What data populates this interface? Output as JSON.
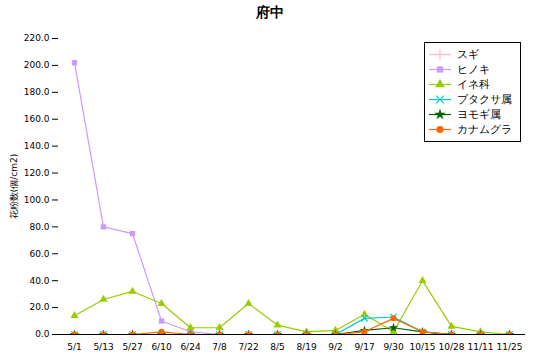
{
  "chart_data": {
    "type": "line",
    "title": "府中",
    "ylabel": "花粉数(個/cm2)",
    "categories": [
      "5/1",
      "5/13",
      "5/27",
      "6/10",
      "6/24",
      "7/8",
      "7/22",
      "8/5",
      "8/19",
      "9/2",
      "9/17",
      "9/30",
      "10/15",
      "10/28",
      "11/11",
      "11/25"
    ],
    "series": [
      {
        "name": "スギ",
        "color": "#ffb6c1",
        "marker": "plus",
        "values": [
          0,
          0,
          0,
          0,
          0,
          0,
          0,
          0,
          0,
          0,
          0,
          0,
          0,
          0,
          0,
          0
        ]
      },
      {
        "name": "ヒノキ",
        "color": "#cc99ff",
        "marker": "square",
        "values": [
          202,
          80,
          75,
          10,
          2,
          0,
          0,
          0,
          0,
          0,
          0,
          0,
          0,
          0,
          0,
          0
        ]
      },
      {
        "name": "イネ科",
        "color": "#99cc00",
        "marker": "triangle",
        "values": [
          14,
          26,
          32,
          23,
          5,
          5,
          23,
          7,
          2,
          3,
          15,
          2,
          40,
          6,
          2,
          0
        ]
      },
      {
        "name": "ブタクサ属",
        "color": "#00cccc",
        "marker": "x",
        "values": [
          0,
          0,
          0,
          0,
          0,
          0,
          0,
          0,
          0,
          0,
          12,
          13,
          2,
          0,
          0,
          0
        ]
      },
      {
        "name": "ヨモギ属",
        "color": "#006600",
        "marker": "star",
        "values": [
          0,
          0,
          0,
          0,
          0,
          0,
          0,
          0,
          0,
          0,
          3,
          5,
          2,
          0,
          0,
          0
        ]
      },
      {
        "name": "カナムグラ",
        "color": "#ff6600",
        "marker": "circle",
        "values": [
          0,
          0,
          0,
          2,
          0,
          0,
          0,
          0,
          0,
          0,
          2,
          12,
          2,
          0,
          0,
          0
        ]
      }
    ],
    "ylim": [
      0,
      220
    ],
    "yticks": [
      {
        "value": 0,
        "label": "0.0"
      },
      {
        "value": 20,
        "label": "20.0"
      },
      {
        "value": 40,
        "label": "40.0"
      },
      {
        "value": 60,
        "label": "60.0"
      },
      {
        "value": 80,
        "label": "80.0"
      },
      {
        "value": 100,
        "label": "100.0"
      },
      {
        "value": 120,
        "label": "120.0"
      },
      {
        "value": 140,
        "label": "140.0"
      },
      {
        "value": 160,
        "label": "160.0"
      },
      {
        "value": 180,
        "label": "180.0"
      },
      {
        "value": 200,
        "label": "200.0"
      },
      {
        "value": 220,
        "label": "220.0"
      }
    ],
    "grid": false,
    "legend": "upper right"
  }
}
